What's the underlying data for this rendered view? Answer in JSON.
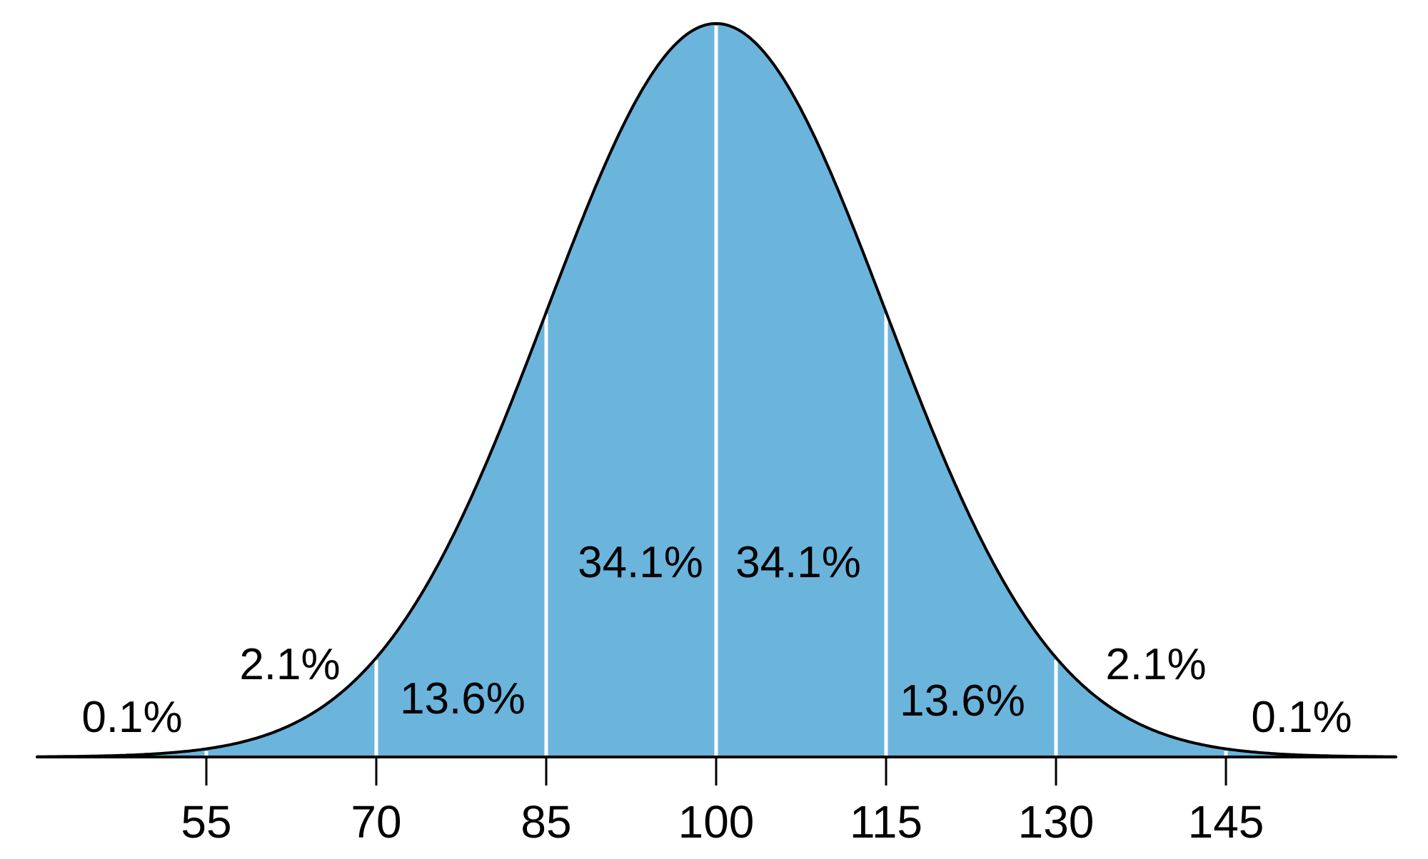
{
  "chart_data": {
    "type": "area",
    "title": "",
    "xlabel": "",
    "ylabel": "",
    "distribution": "normal",
    "mean": 100,
    "sd": 15,
    "xlim": [
      40,
      160
    ],
    "x_ticks": [
      55,
      70,
      85,
      100,
      115,
      130,
      145
    ],
    "tick_labels": [
      "55",
      "70",
      "85",
      "100",
      "115",
      "130",
      "145"
    ],
    "band_edges": [
      55,
      70,
      85,
      100,
      115,
      130,
      145
    ],
    "regions": [
      {
        "from": 40,
        "to": 55,
        "label": "0.1%"
      },
      {
        "from": 55,
        "to": 70,
        "label": "2.1%"
      },
      {
        "from": 70,
        "to": 85,
        "label": "13.6%"
      },
      {
        "from": 85,
        "to": 100,
        "label": "34.1%"
      },
      {
        "from": 100,
        "to": 115,
        "label": "34.1%"
      },
      {
        "from": 115,
        "to": 130,
        "label": "13.6%"
      },
      {
        "from": 130,
        "to": 145,
        "label": "2.1%"
      },
      {
        "from": 145,
        "to": 160,
        "label": "0.1%"
      }
    ],
    "grid": false,
    "legend": "none",
    "colors": {
      "fill": "#6BB5DD",
      "curve": "#000000",
      "separator": "#FFFFFF"
    }
  }
}
